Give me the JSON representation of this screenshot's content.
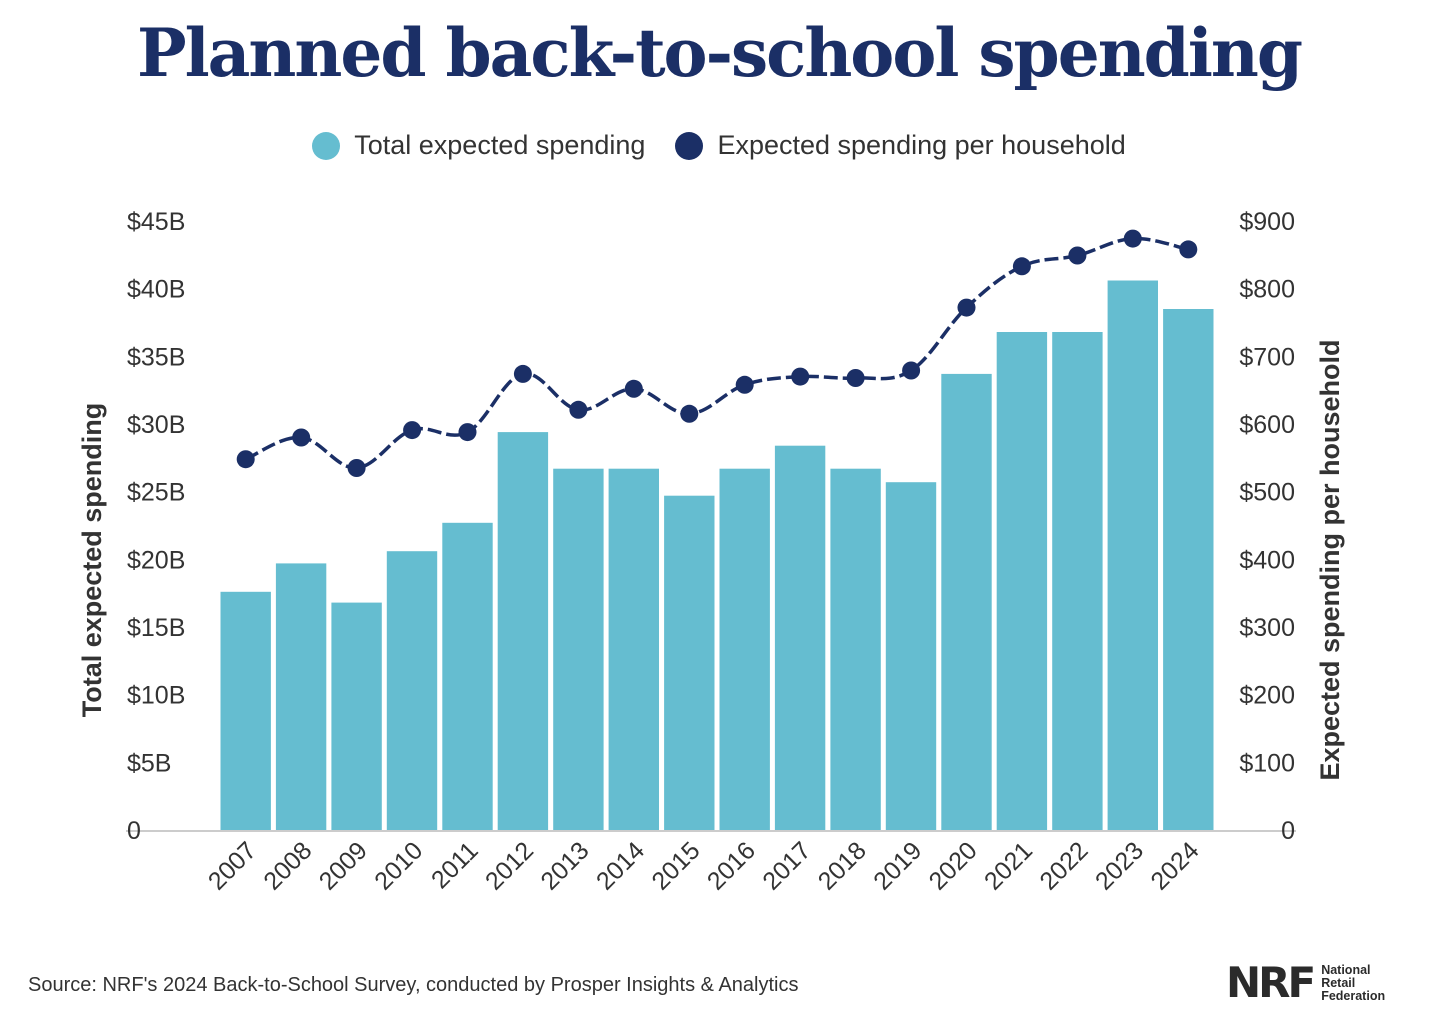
{
  "title": "Planned back-to-school spending",
  "legend": {
    "total_label": "Total expected spending",
    "household_label": "Expected spending per household"
  },
  "colors": {
    "bar": "#65bdd0",
    "line": "#1b2f66",
    "title": "#1b2f66",
    "axis": "#cccccc"
  },
  "source": "Source: NRF's 2024 Back-to-School Survey, conducted by Prosper Insights & Analytics",
  "logo": {
    "mark": "NRF",
    "line1": "National",
    "line2": "Retail",
    "line3": "Federation"
  },
  "chart_data": {
    "type": "bar",
    "title": "Planned back-to-school spending",
    "categories": [
      "2007",
      "2008",
      "2009",
      "2010",
      "2011",
      "2012",
      "2013",
      "2014",
      "2015",
      "2016",
      "2017",
      "2018",
      "2019",
      "2020",
      "2021",
      "2022",
      "2023",
      "2024"
    ],
    "series": [
      {
        "name": "Total expected spending",
        "type": "bar",
        "axis": "left",
        "unit": "billion USD",
        "values": [
          17.6,
          19.7,
          16.8,
          20.6,
          22.7,
          29.4,
          26.7,
          26.7,
          24.7,
          26.7,
          28.4,
          26.7,
          25.7,
          33.7,
          36.8,
          36.8,
          40.6,
          38.5
        ]
      },
      {
        "name": "Expected spending per household",
        "type": "line",
        "axis": "right",
        "unit": "USD",
        "values": [
          548,
          580,
          535,
          591,
          588,
          674,
          621,
          652,
          615,
          658,
          670,
          668,
          679,
          772,
          833,
          849,
          874,
          858
        ]
      }
    ],
    "y_left": {
      "label": "Total expected spending",
      "range": [
        0,
        45
      ],
      "ticks": [
        0,
        5,
        10,
        15,
        20,
        25,
        30,
        35,
        40,
        45
      ],
      "tick_labels": [
        "0",
        "$5B",
        "$10B",
        "$15B",
        "$20B",
        "$25B",
        "$30B",
        "$35B",
        "$40B",
        "$45B"
      ]
    },
    "y_right": {
      "label": "Expected spending per household",
      "range": [
        0,
        900
      ],
      "ticks": [
        0,
        100,
        200,
        300,
        400,
        500,
        600,
        700,
        800,
        900
      ],
      "tick_labels": [
        "0",
        "$100",
        "$200",
        "$300",
        "$400",
        "$500",
        "$600",
        "$700",
        "$800",
        "$900"
      ]
    },
    "legend_position": "top-center",
    "grid": false
  }
}
